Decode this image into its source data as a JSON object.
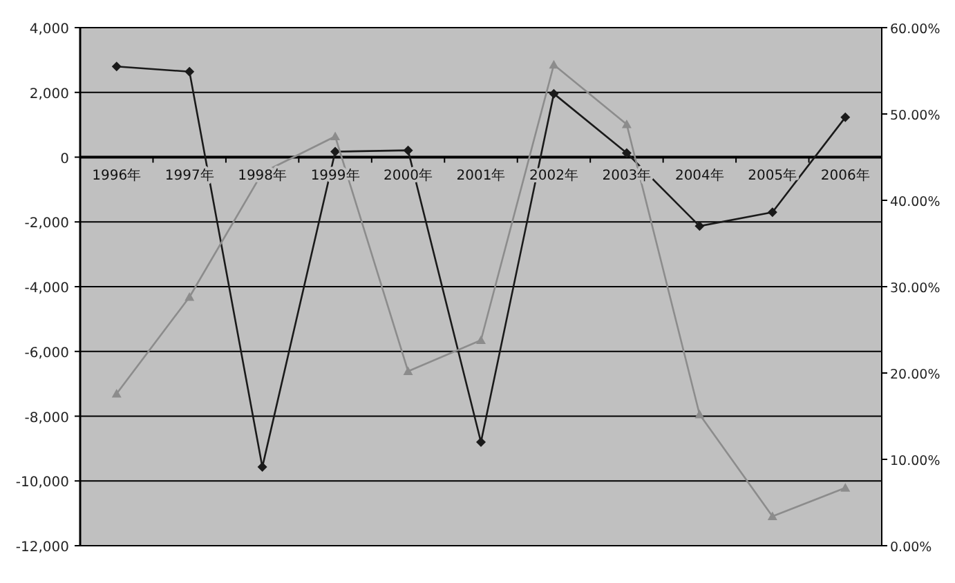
{
  "chart_data": {
    "type": "line",
    "categories": [
      "1996年",
      "1997年",
      "1998年",
      "1999年",
      "2000年",
      "2001年",
      "2002年",
      "2003年",
      "2004年",
      "2005年",
      "2006年"
    ],
    "series": [
      {
        "color": "#1a1a1a",
        "marker": "diamond",
        "values": [
          2800,
          2640,
          -9570,
          170,
          210,
          -8800,
          1960,
          130,
          -2130,
          -1700,
          1230
        ]
      },
      {
        "color": "#8c8c8c",
        "marker": "triangle",
        "axis": "y2",
        "values": [
          17.6,
          28.8,
          43.2,
          47.4,
          20.2,
          23.8,
          55.7,
          48.8,
          15.2,
          3.4,
          6.7
        ]
      }
    ],
    "ylim": [
      -12000,
      4000
    ],
    "yticks": [
      {
        "value": 4000,
        "label": "4,000"
      },
      {
        "value": 2000,
        "label": "2,000"
      },
      0,
      {
        "value": -2000,
        "label": "-2,000"
      },
      {
        "value": -4000,
        "label": "-4,000"
      },
      {
        "value": -6000,
        "label": "-6,000"
      },
      {
        "value": -8000,
        "label": "-8,000"
      },
      {
        "value": -10000,
        "label": "-10,000"
      },
      {
        "value": -12000,
        "label": "-12,000"
      }
    ],
    "y2lim": [
      0,
      60
    ],
    "y2ticks": [
      {
        "value": 60,
        "label": "60.00%"
      },
      {
        "value": 50,
        "label": "50.00%"
      },
      {
        "value": 40,
        "label": "40.00%"
      },
      {
        "value": 30,
        "label": "30.00%"
      },
      {
        "value": 20,
        "label": "20.00%"
      },
      {
        "value": 10,
        "label": "10.00%"
      },
      {
        "value": 0,
        "label": "0.00%"
      }
    ],
    "grid": "y"
  }
}
